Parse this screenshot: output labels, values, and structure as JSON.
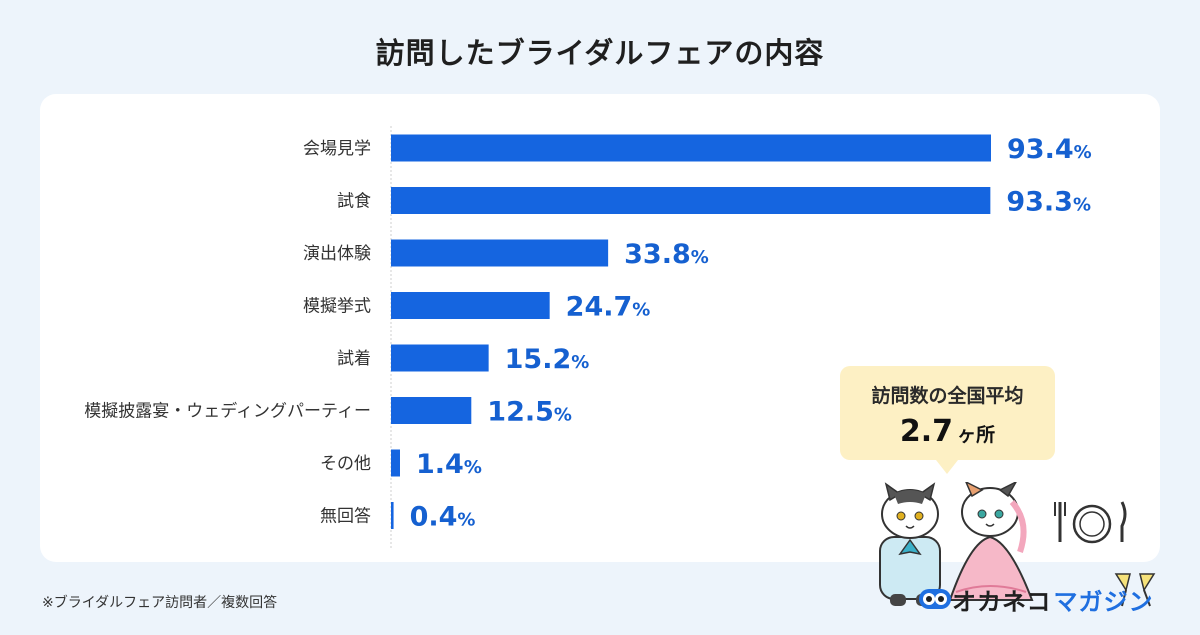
{
  "header": {
    "title": "訪問したブライダルフェアの内容"
  },
  "chart_data": {
    "type": "bar",
    "orientation": "horizontal",
    "categories": [
      "会場見学",
      "試食",
      "演出体験",
      "模擬挙式",
      "試着",
      "模擬披露宴・ウェディングパーティー",
      "その他",
      "無回答"
    ],
    "values": [
      93.4,
      93.3,
      33.8,
      24.7,
      15.2,
      12.5,
      1.4,
      0.4
    ],
    "value_suffix": "%",
    "xlim": [
      0,
      100
    ],
    "bar_color": "#1565e0",
    "label_color": "#1560d0",
    "grid": false
  },
  "callout": {
    "label": "訪問数の全国平均",
    "value": "2.7",
    "unit": "ヶ所"
  },
  "footnote": "※ブライダルフェア訪問者／複数回答",
  "brand": {
    "name_black": "オカネコ",
    "name_blue": "マガジン",
    "accent": "#1f6fe0"
  }
}
